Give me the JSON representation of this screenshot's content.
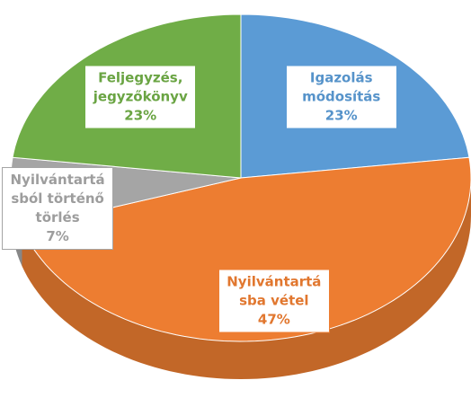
{
  "chart_data": {
    "type": "pie",
    "categories": [
      "Igazolás módosítás",
      "Nyilvántartásba vétel",
      "Nyilvántartásból történő törlés",
      "Feljegyzés, jegyzőkönyv"
    ],
    "values": [
      23,
      47,
      7,
      23
    ],
    "value_labels": [
      "23%",
      "47%",
      "7%",
      "23%"
    ],
    "colors": [
      "#5b9bd5",
      "#ed7d31",
      "#a5a5a5",
      "#70ad47"
    ],
    "start_angle": 0,
    "direction": "clockwise",
    "three_d": true
  }
}
